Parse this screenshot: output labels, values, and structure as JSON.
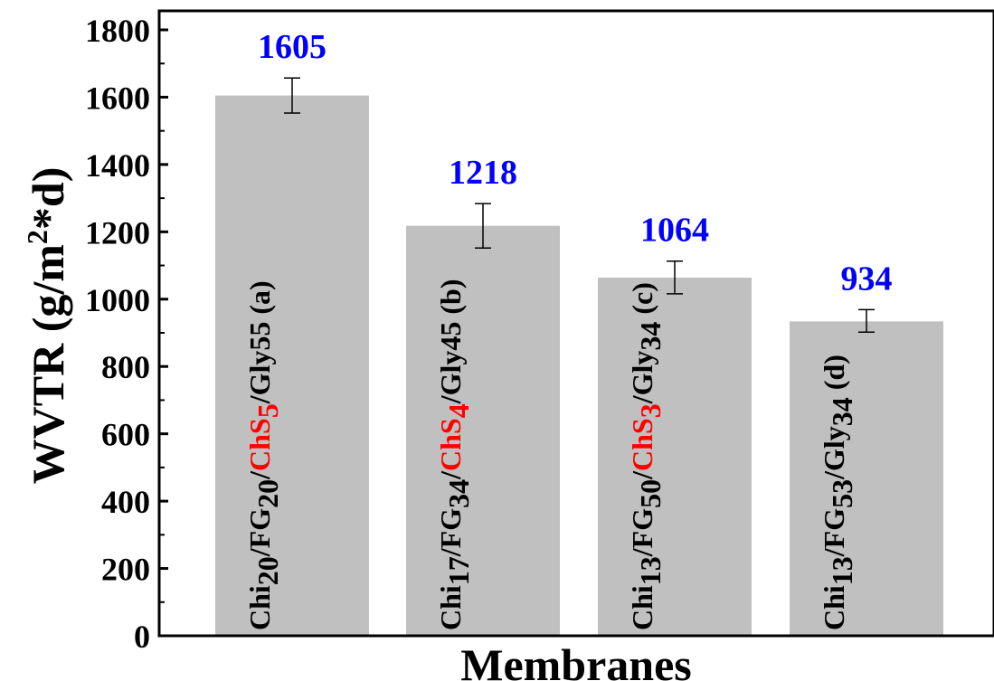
{
  "chart_data": {
    "type": "bar",
    "xlabel": "Membranes",
    "ylabel": "WVTR (g/m2*d)",
    "ylabel_parts": {
      "main": "WVTR (g/m",
      "sup": "2",
      "tail": "*d)"
    },
    "ylim": [
      0,
      1800
    ],
    "yticks": [
      "0",
      "200",
      "400",
      "600",
      "800",
      "1000",
      "1200",
      "1400",
      "1600",
      "1800"
    ],
    "categories": [
      "Chi20/FG20/ChS5/Gly55 (a)",
      "Chi17/FG34/ChS4/Gly45 (b)",
      "Chi13/FG50/ChS3/Gly34 (c)",
      "Chi13/FG53/Gly34 (d)"
    ],
    "category_label_parts": [
      [
        {
          "t": "Chi"
        },
        {
          "t": "20",
          "sub": true
        },
        {
          "t": "/FG"
        },
        {
          "t": "20",
          "sub": true
        },
        {
          "t": "/"
        },
        {
          "t": "ChS",
          "red": true
        },
        {
          "t": "5",
          "sub": true,
          "red": true
        },
        {
          "t": "/Gly"
        },
        {
          "t": "55 (a)"
        }
      ],
      [
        {
          "t": "Chi"
        },
        {
          "t": "17",
          "sub": true
        },
        {
          "t": "/FG"
        },
        {
          "t": "34",
          "sub": true
        },
        {
          "t": "/"
        },
        {
          "t": "ChS",
          "red": true
        },
        {
          "t": "4",
          "sub": true,
          "red": true
        },
        {
          "t": "/Gly"
        },
        {
          "t": "45 (b)"
        }
      ],
      [
        {
          "t": "Chi"
        },
        {
          "t": "13",
          "sub": true
        },
        {
          "t": "/FG"
        },
        {
          "t": "50",
          "sub": true
        },
        {
          "t": "/"
        },
        {
          "t": "ChS",
          "red": true
        },
        {
          "t": "3",
          "sub": true,
          "red": true
        },
        {
          "t": "/Gly"
        },
        {
          "t": "34",
          "sub": true
        },
        {
          "t": " (c)"
        }
      ],
      [
        {
          "t": "Chi"
        },
        {
          "t": "13",
          "sub": true
        },
        {
          "t": "/FG"
        },
        {
          "t": "53",
          "sub": true
        },
        {
          "t": "/Gly"
        },
        {
          "t": "34",
          "sub": true
        },
        {
          "t": " (d)"
        }
      ]
    ],
    "values": [
      1605,
      1218,
      1064,
      934
    ],
    "value_labels": [
      "1605",
      "1218",
      "1064",
      "934"
    ],
    "error_low": [
      1553,
      1152,
      1016,
      902
    ],
    "error_high": [
      1657,
      1284,
      1113,
      969
    ],
    "grid": false,
    "legend": "none"
  },
  "colors": {
    "bar": "#c0c0c0",
    "value_label": "#0000ff",
    "highlight": "#ff0000",
    "axis": "#000000"
  }
}
